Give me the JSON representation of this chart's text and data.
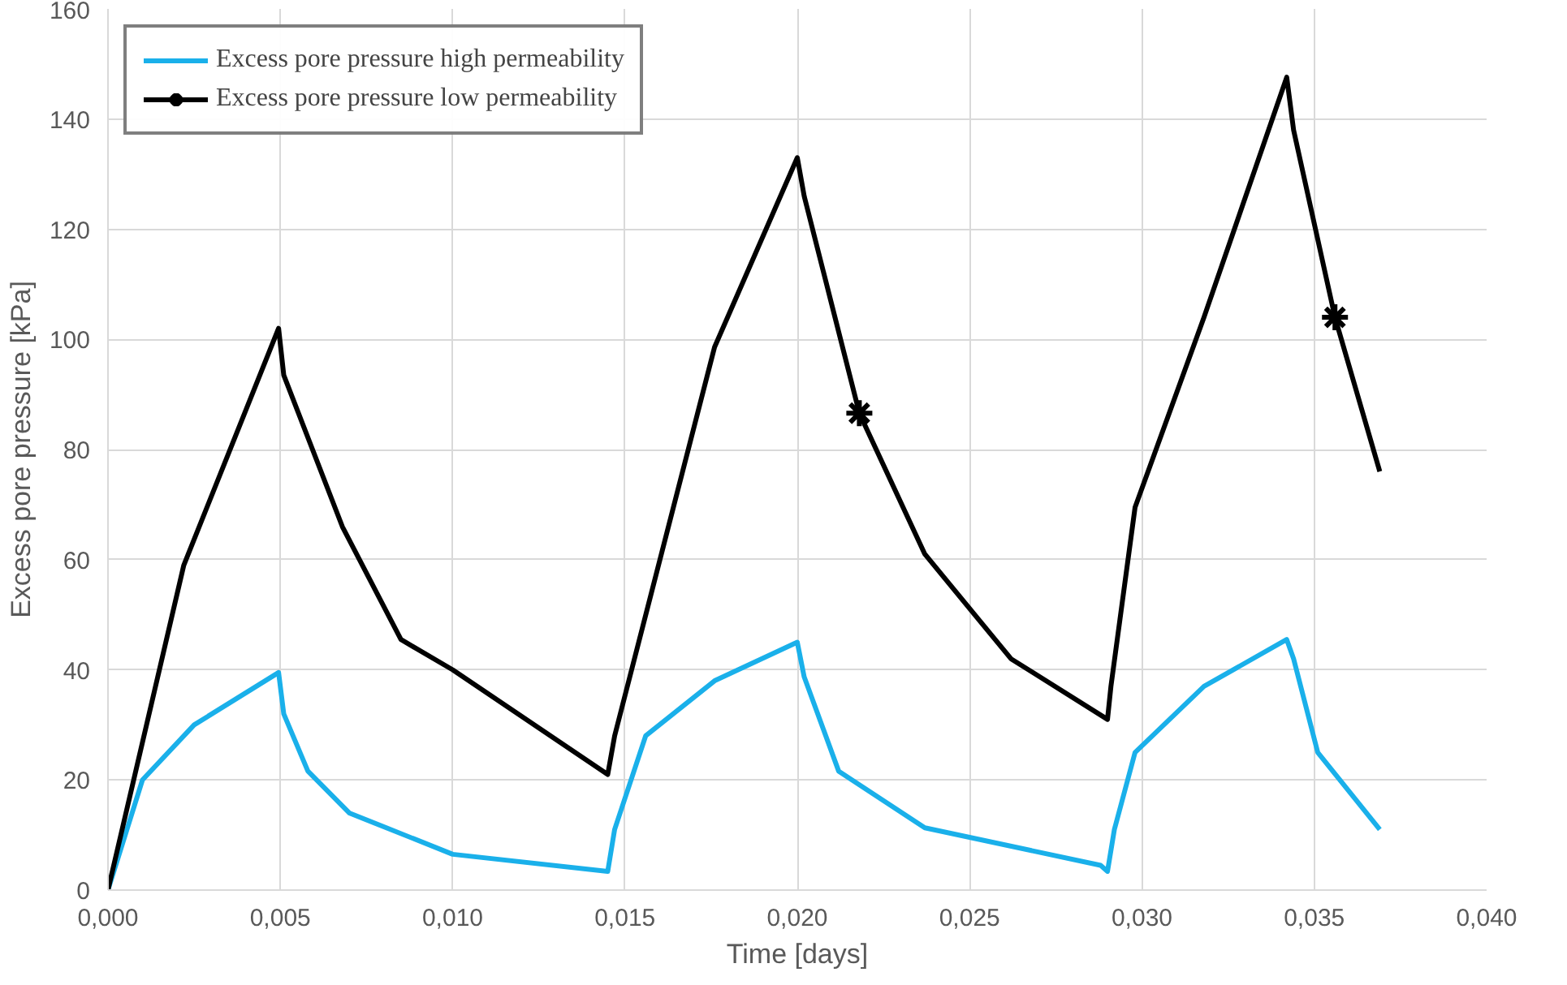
{
  "chart_data": {
    "type": "line",
    "xlabel": "Time [days]",
    "ylabel": "Excess pore pressure [kPa]",
    "xlim": [
      0,
      0.04
    ],
    "ylim": [
      0,
      160
    ],
    "xticks": [
      {
        "value": 0,
        "label": "0,000"
      },
      {
        "value": 0.005,
        "label": "0,005"
      },
      {
        "value": 0.01,
        "label": "0,010"
      },
      {
        "value": 0.015,
        "label": "0,015"
      },
      {
        "value": 0.02,
        "label": "0,020"
      },
      {
        "value": 0.025,
        "label": "0,025"
      },
      {
        "value": 0.03,
        "label": "0,030"
      },
      {
        "value": 0.035,
        "label": "0,035"
      },
      {
        "value": 0.04,
        "label": "0,040"
      }
    ],
    "yticks": [
      0,
      20,
      40,
      60,
      80,
      100,
      120,
      140,
      160
    ],
    "grid": true,
    "legend": "top left",
    "series": [
      {
        "name": "Excess pore pressure high permeability",
        "color": "#1ab0ea",
        "x": [
          0,
          0.001,
          0.0025,
          0.00495,
          0.0051,
          0.0058,
          0.007,
          0.01,
          0.0145,
          0.0147,
          0.0156,
          0.0176,
          0.02,
          0.0202,
          0.0212,
          0.0237,
          0.0288,
          0.029,
          0.0292,
          0.0298,
          0.0318,
          0.0342,
          0.0344,
          0.0351,
          0.0369
        ],
        "values": [
          0,
          20,
          30,
          39.5,
          32,
          21.6,
          14,
          6.5,
          3.4,
          11,
          28,
          38,
          45,
          38.7,
          21.6,
          11.3,
          4.5,
          3.4,
          11,
          25,
          37,
          45.5,
          42,
          25,
          11
        ]
      },
      {
        "name": "Excess pore pressure low permeability",
        "color": "#000000",
        "x": [
          0,
          0.0022,
          0.00495,
          0.0051,
          0.0068,
          0.0085,
          0.01,
          0.0145,
          0.0147,
          0.0176,
          0.02,
          0.0202,
          0.0218,
          0.0237,
          0.0262,
          0.029,
          0.0291,
          0.0298,
          0.0318,
          0.0342,
          0.0344,
          0.0356,
          0.0369
        ],
        "values": [
          0,
          59,
          102,
          93.5,
          66,
          45.5,
          40,
          21,
          28,
          98.6,
          133,
          126,
          86.6,
          61,
          42,
          31,
          37,
          69.5,
          104,
          147.6,
          138,
          104,
          76
        ]
      },
      {
        "type": "scatter",
        "color": "#000000",
        "marker": "cross",
        "x": [
          0.0218,
          0.0356
        ],
        "values": [
          86.6,
          104
        ]
      }
    ]
  }
}
